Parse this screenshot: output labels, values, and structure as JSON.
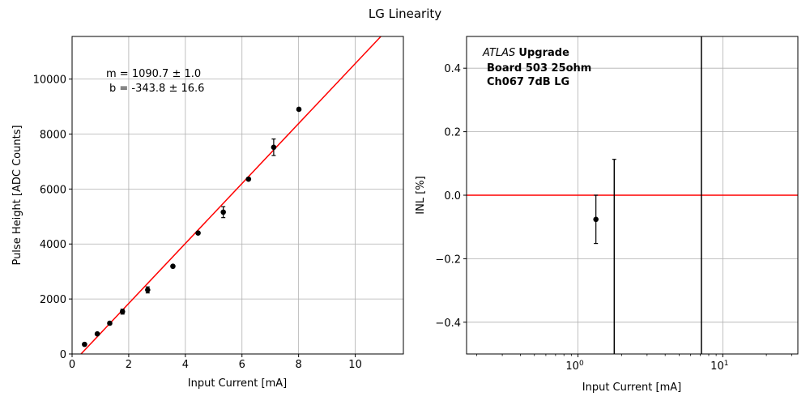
{
  "figure_title": "LG Linearity",
  "chart_data": [
    {
      "type": "scatter",
      "panel": "left",
      "xlabel": "Input Current [mA]",
      "ylabel": "Pulse Height [ADC Counts]",
      "xlim": [
        0,
        11.7
      ],
      "ylim": [
        0,
        11550
      ],
      "xticks": [
        0,
        2,
        4,
        6,
        8,
        10
      ],
      "yticks": [
        0,
        2000,
        4000,
        6000,
        8000,
        10000
      ],
      "grid": true,
      "annotation": {
        "line1": "m = 1090.7 ± 1.0",
        "line2": "b = -343.8 ± 16.6"
      },
      "points": [
        {
          "x": 0.44,
          "y": 350,
          "err": 40
        },
        {
          "x": 0.89,
          "y": 730,
          "err": 40
        },
        {
          "x": 1.33,
          "y": 1120,
          "err": 50
        },
        {
          "x": 1.78,
          "y": 1540,
          "err": 90
        },
        {
          "x": 2.67,
          "y": 2330,
          "err": 110
        },
        {
          "x": 3.56,
          "y": 3190,
          "err": 40
        },
        {
          "x": 4.45,
          "y": 4400,
          "err": 40
        },
        {
          "x": 5.34,
          "y": 5160,
          "err": 200
        },
        {
          "x": 6.23,
          "y": 6360,
          "err": 40
        },
        {
          "x": 7.12,
          "y": 7520,
          "err": 300
        },
        {
          "x": 8.01,
          "y": 8900,
          "err": 40
        }
      ],
      "fit": {
        "slope": 1090.7,
        "intercept": -343.8,
        "color": "#ff0000"
      }
    },
    {
      "type": "scatter",
      "panel": "right",
      "xlabel": "Input Current [mA]",
      "ylabel": "INL [%]",
      "xscale": "log",
      "xlim": [
        0.17,
        33
      ],
      "ylim": [
        -0.5,
        0.5
      ],
      "xticks": [
        {
          "value": 1,
          "label": "10^0"
        },
        {
          "value": 10,
          "label": "10^1"
        }
      ],
      "yticks": [
        -0.4,
        -0.2,
        0.0,
        0.2,
        0.4
      ],
      "ytick_labels": [
        "−0.4",
        "−0.2",
        "0.0",
        "0.2",
        "0.4"
      ],
      "grid": true,
      "legend_text": {
        "italic": "ATLAS",
        "bold": "Upgrade",
        "line2": "Board 503 25ohm",
        "line3": "Ch067 7dB LG"
      },
      "points": [
        {
          "x": 1.33,
          "y": -0.076,
          "err_low": 0.076,
          "err_high": 0.076
        }
      ],
      "error_bars": [
        {
          "x": 1.78,
          "low": -0.5,
          "high": 0.113
        },
        {
          "x": 7.12,
          "low": -0.5,
          "high": 0.5
        }
      ],
      "reference_line": {
        "y": 0.0,
        "color": "#ff0000"
      }
    }
  ]
}
